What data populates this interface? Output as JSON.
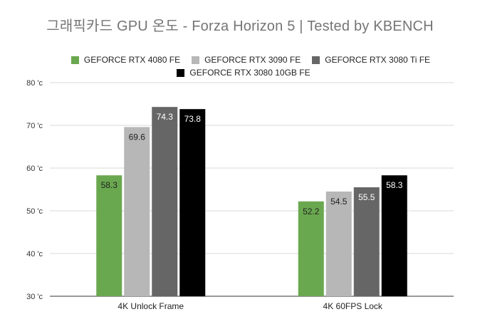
{
  "chart_data": {
    "type": "bar",
    "title": "그래픽카드 GPU 온도 - Forza Horizon 5 | Tested by KBENCH",
    "xlabel": "",
    "ylabel": "",
    "categories": [
      "4K Unlock Frame",
      "4K 60FPS Lock"
    ],
    "series": [
      {
        "name": "GEFORCE RTX 4080 FE",
        "color": "#6aa84f",
        "label_color": "#222222",
        "values": [
          58.3,
          52.2
        ]
      },
      {
        "name": "GEFORCE RTX 3090 FE",
        "color": "#b7b7b7",
        "label_color": "#222222",
        "values": [
          69.6,
          54.5
        ]
      },
      {
        "name": "GEFORCE RTX 3080 Ti FE",
        "color": "#666666",
        "label_color": "#ffffff",
        "values": [
          74.3,
          55.5
        ]
      },
      {
        "name": "GEFORCE RTX 3080 10GB FE",
        "color": "#000000",
        "label_color": "#ffffff",
        "values": [
          73.8,
          58.3
        ]
      }
    ],
    "ylim": [
      30,
      80
    ],
    "yticks": [
      "30 'c",
      "40 'c",
      "50 'c",
      "60 'c",
      "70 'c",
      "80 'c"
    ],
    "grid": true,
    "legend_position": "top"
  }
}
